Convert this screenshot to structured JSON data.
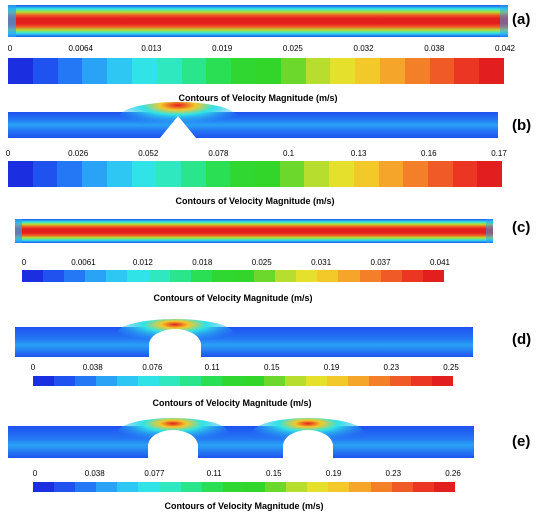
{
  "colormap": [
    "#1c2fe0",
    "#1f52ef",
    "#2478f5",
    "#2aa2f5",
    "#2ec6f3",
    "#30e3e6",
    "#2fe8bf",
    "#2ae58c",
    "#2adf54",
    "#2fd730",
    "#32d52a",
    "#6cd82c",
    "#b7de2e",
    "#e5e02c",
    "#f3c92a",
    "#f5a52a",
    "#f38028",
    "#f05a26",
    "#ea3623",
    "#e31e1e"
  ],
  "panels": [
    {
      "label": "(a)",
      "ticks": [
        "0",
        "0.0064",
        "0.013",
        "0.019",
        "0.025",
        "0.032",
        "0.038",
        "0.042"
      ],
      "caption": "Contours of Velocity Magnitude (m/s)"
    },
    {
      "label": "(b)",
      "ticks": [
        "0",
        "0.026",
        "0.052",
        "0.078",
        "0.1",
        "0.13",
        "0.16",
        "0.17"
      ],
      "caption": "Contours of Velocity Magnitude (m/s)"
    },
    {
      "label": "(c)",
      "ticks": [
        "0",
        "0.0061",
        "0.012",
        "0.018",
        "0.025",
        "0.031",
        "0.037",
        "0.041"
      ],
      "caption": "Contours of Velocity Magnitude (m/s)"
    },
    {
      "label": "(d)",
      "ticks": [
        "0",
        "0.038",
        "0.076",
        "0.11",
        "0.15",
        "0.19",
        "0.23",
        "0.25"
      ],
      "caption": "Contours of Velocity Magnitude (m/s)"
    },
    {
      "label": "(e)",
      "ticks": [
        "0",
        "0.038",
        "0.077",
        "0.11",
        "0.15",
        "0.19",
        "0.23",
        "0.26"
      ],
      "caption": "Contours of Velocity Magnitude (m/s)"
    }
  ]
}
